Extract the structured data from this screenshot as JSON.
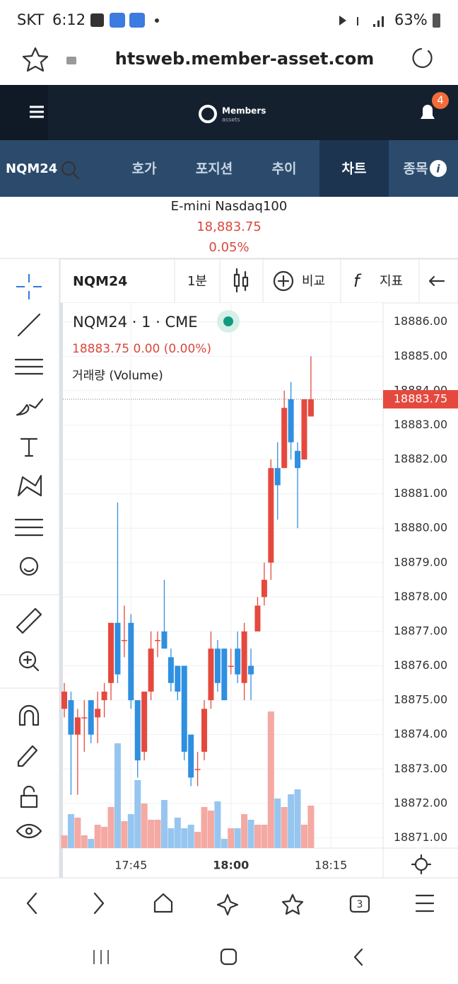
{
  "status_bar": {
    "carrier": "SKT",
    "time": "6:12",
    "battery": "63%"
  },
  "browser": {
    "url": "htsweb.member-asset.com"
  },
  "app_header": {
    "logo": "Members",
    "logo_sub": "assets",
    "notifications": "4"
  },
  "nav": {
    "symbol": "NQM24",
    "tabs": [
      "호가",
      "포지션",
      "추이",
      "차트",
      "종목"
    ]
  },
  "quote": {
    "name": "E-mini Nasdaq100",
    "price": "18,883.75",
    "change": "0.05%"
  },
  "toolbar": {
    "symbol": "NQM24",
    "interval": "1분",
    "compare": "비교",
    "indicator": "지표"
  },
  "chart_data": {
    "type": "candlestick",
    "legend": {
      "title": "NQM24 · 1 · CME",
      "ohlc": "18883.75 0.00 (0.00%)",
      "volume": "거래량 (Volume)"
    },
    "x": [
      "17:35",
      "17:36",
      "17:37",
      "17:38",
      "17:39",
      "17:40",
      "17:41",
      "17:42",
      "17:43",
      "17:44",
      "17:45",
      "17:46",
      "17:47",
      "17:48",
      "17:49",
      "17:50",
      "17:51",
      "17:52",
      "17:53",
      "17:54",
      "17:55",
      "17:56",
      "17:57",
      "17:58",
      "17:59",
      "18:00",
      "18:01",
      "18:02",
      "18:03",
      "18:04",
      "18:05",
      "18:06",
      "18:07",
      "18:08",
      "18:09",
      "18:10",
      "18:11",
      "18:12"
    ],
    "open": [
      18874.75,
      18875.0,
      18874.0,
      18874.5,
      18875.0,
      18874.5,
      18875.0,
      18875.5,
      18877.25,
      18876.75,
      18877.25,
      18875.0,
      18873.5,
      18875.25,
      18876.75,
      18877.0,
      18876.25,
      18876.0,
      18876.0,
      18874.0,
      18873.0,
      18873.5,
      18875.0,
      18876.5,
      18876.5,
      18876.0,
      18876.5,
      18875.5,
      18876.0,
      18877.0,
      18878.0,
      18879.0,
      18881.75,
      18881.75,
      18883.75,
      18882.25,
      18882.0,
      18883.25
    ],
    "high": [
      18875.5,
      18875.25,
      18874.75,
      18875.0,
      18875.0,
      18875.25,
      18875.5,
      18877.25,
      18880.75,
      18877.75,
      18877.5,
      18875.0,
      18875.25,
      18877.0,
      18877.0,
      18878.5,
      18876.5,
      18876.0,
      18876.0,
      18874.0,
      18873.5,
      18875.0,
      18877.0,
      18876.75,
      18876.5,
      18876.5,
      18877.0,
      18877.25,
      18876.5,
      18878.0,
      18879.0,
      18882.0,
      18882.5,
      18884.0,
      18884.25,
      18882.5,
      18883.75,
      18885.0
    ],
    "low": [
      18874.5,
      18872.25,
      18872.25,
      18873.5,
      18873.75,
      18873.75,
      18874.5,
      18875.0,
      18875.5,
      18876.25,
      18874.75,
      18872.75,
      18873.25,
      18875.0,
      18876.25,
      18876.5,
      18875.25,
      18875.0,
      18873.25,
      18872.5,
      18872.5,
      18873.25,
      18874.75,
      18875.25,
      18875.0,
      18875.75,
      18875.5,
      18875.0,
      18875.0,
      18877.0,
      18877.75,
      18878.5,
      18880.25,
      18881.75,
      18882.0,
      18880.0,
      18882.0,
      18883.25
    ],
    "close": [
      18875.25,
      18874.0,
      18874.5,
      18874.5,
      18874.0,
      18874.75,
      18875.25,
      18877.25,
      18875.75,
      18876.75,
      18875.0,
      18873.25,
      18875.25,
      18876.5,
      18876.75,
      18876.5,
      18875.5,
      18875.25,
      18873.5,
      18872.75,
      18873.0,
      18874.75,
      18876.5,
      18875.5,
      18875.0,
      18876.0,
      18875.75,
      18877.0,
      18875.75,
      18877.75,
      18878.5,
      18881.75,
      18881.25,
      18883.5,
      18882.5,
      18881.75,
      18883.75,
      18883.75
    ],
    "volume": [
      18,
      48,
      43,
      18,
      13,
      33,
      30,
      58,
      148,
      38,
      48,
      96,
      63,
      40,
      40,
      68,
      28,
      43,
      28,
      33,
      23,
      58,
      53,
      66,
      13,
      28,
      28,
      48,
      40,
      33,
      33,
      193,
      70,
      58,
      76,
      83,
      33,
      60
    ],
    "last_price": 18883.75,
    "up_color": "#e5493e",
    "down_color": "#2f8fe0",
    "up_volume_color": "#f4a9a3",
    "down_volume_color": "#96c6ef",
    "ylim": [
      18870.7,
      18886.55
    ],
    "yticks": [
      {
        "value": 18871,
        "label": "18871.00"
      },
      {
        "value": 18872,
        "label": "18872.00"
      },
      {
        "value": 18873,
        "label": "18873.00"
      },
      {
        "value": 18874,
        "label": "18874.00"
      },
      {
        "value": 18875,
        "label": "18875.00"
      },
      {
        "value": 18876,
        "label": "18876.00"
      },
      {
        "value": 18877,
        "label": "18877.00"
      },
      {
        "value": 18878,
        "label": "18878.00"
      },
      {
        "value": 18879,
        "label": "18879.00"
      },
      {
        "value": 18880,
        "label": "18880.00"
      },
      {
        "value": 18881,
        "label": "18881.00"
      },
      {
        "value": 18882,
        "label": "18882.00"
      },
      {
        "value": 18883,
        "label": "18883.00"
      },
      {
        "value": 18884,
        "label": "18884.00"
      },
      {
        "value": 18885,
        "label": "18885.00"
      },
      {
        "value": 18886,
        "label": "18886.00"
      }
    ],
    "xticks": [
      "17:45",
      "18:00",
      "18:15"
    ],
    "grid": true
  }
}
